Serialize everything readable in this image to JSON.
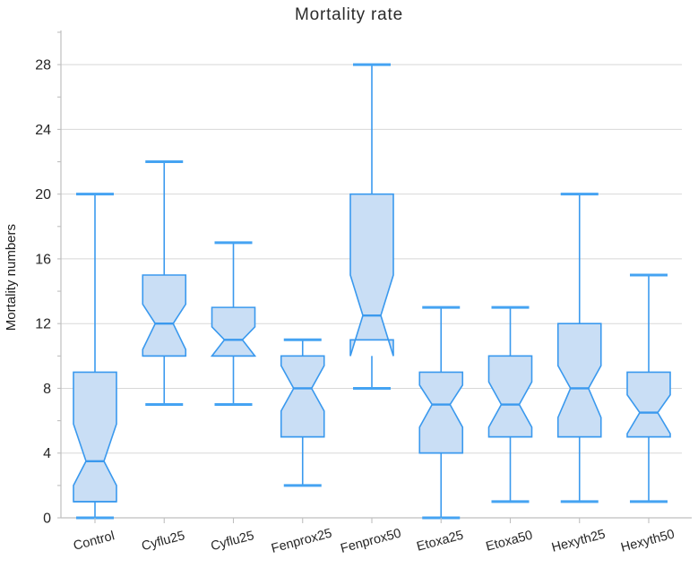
{
  "chart_data": {
    "type": "box",
    "title": "Mortality rate",
    "ylabel": "Mortality numbers",
    "xlabel": "",
    "ylim": [
      0,
      30
    ],
    "yticks": [
      0,
      4,
      8,
      12,
      16,
      20,
      24,
      28
    ],
    "yticks_minor": [
      2,
      6,
      10,
      14,
      18,
      22,
      26,
      30
    ],
    "grid": true,
    "legend_position": "none",
    "notched": true,
    "categories": [
      "Control",
      "Cyflu25",
      "Cyflu25",
      "Fenprox25",
      "Fenprox50",
      "Etoxa25",
      "Etoxa50",
      "Hexyth25",
      "Hexyth50"
    ],
    "series": [
      {
        "label": "Control",
        "whisker_low": 0,
        "q1": 1,
        "notch_low": 2,
        "median": 3.5,
        "notch_high": 5.8,
        "q3": 9,
        "whisker_high": 20
      },
      {
        "label": "Cyflu25",
        "whisker_low": 7,
        "q1": 10,
        "notch_low": 10.4,
        "median": 12,
        "notch_high": 13.2,
        "q3": 15,
        "whisker_high": 22
      },
      {
        "label": "Cyflu25",
        "whisker_low": 7,
        "q1": 10,
        "notch_low": 10,
        "median": 11,
        "notch_high": 11.8,
        "q3": 13,
        "whisker_high": 17
      },
      {
        "label": "Fenprox25",
        "whisker_low": 2,
        "q1": 5,
        "notch_low": 6.6,
        "median": 8,
        "notch_high": 9.4,
        "q3": 10,
        "whisker_high": 11
      },
      {
        "label": "Fenprox50",
        "whisker_low": 8,
        "q1": 11,
        "notch_low": 10,
        "median": 12.5,
        "notch_high": 15,
        "q3": 20,
        "whisker_high": 28
      },
      {
        "label": "Etoxa25",
        "whisker_low": 0,
        "q1": 4,
        "notch_low": 5.6,
        "median": 7,
        "notch_high": 8.2,
        "q3": 9,
        "whisker_high": 13
      },
      {
        "label": "Etoxa50",
        "whisker_low": 1,
        "q1": 5,
        "notch_low": 5.6,
        "median": 7,
        "notch_high": 8.4,
        "q3": 10,
        "whisker_high": 13
      },
      {
        "label": "Hexyth25",
        "whisker_low": 1,
        "q1": 5,
        "notch_low": 6.2,
        "median": 8,
        "notch_high": 9.4,
        "q3": 12,
        "whisker_high": 20
      },
      {
        "label": "Hexyth50",
        "whisker_low": 1,
        "q1": 5,
        "notch_low": 5.2,
        "median": 6.5,
        "notch_high": 7.6,
        "q3": 9,
        "whisker_high": 15
      }
    ],
    "colors": {
      "box_fill": "#C9DEF5",
      "box_stroke": "#3A99EE",
      "whisker": "#3A99EE",
      "cap": "#45A3F2",
      "grid": "#D8D8D8",
      "axis": "#BFBFBF",
      "text": "#262626"
    }
  }
}
